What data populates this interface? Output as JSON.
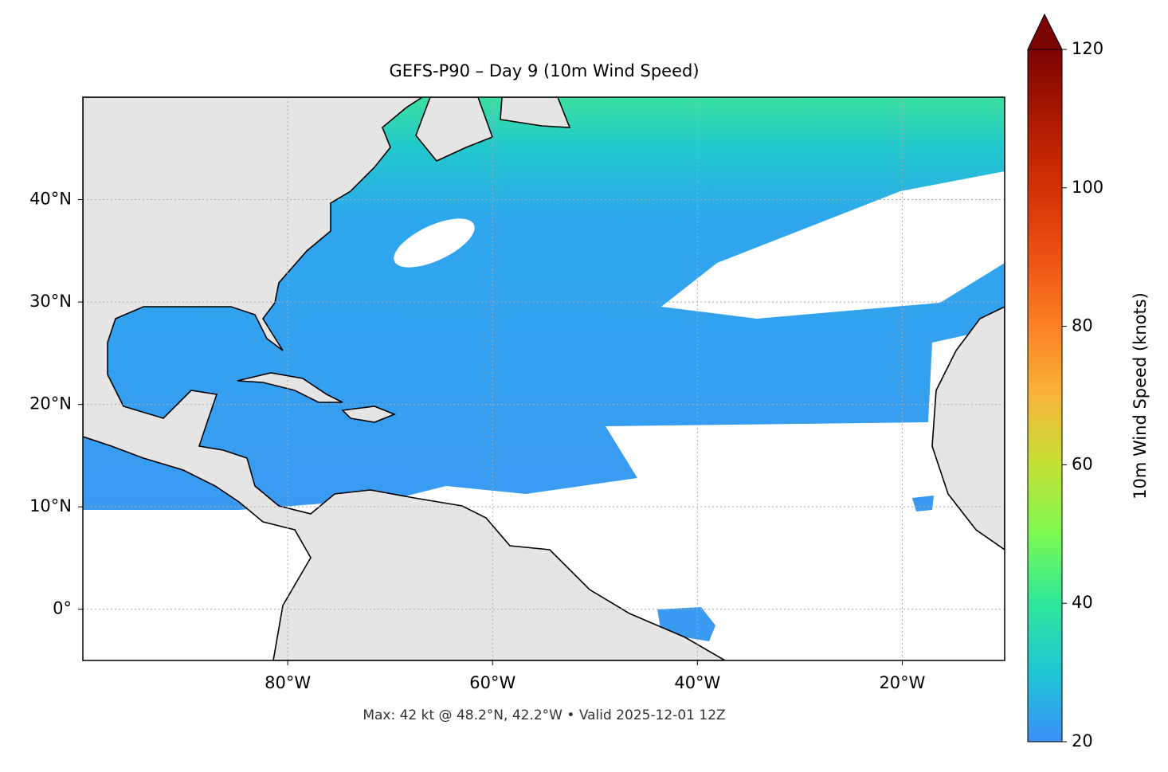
{
  "chart_data": {
    "type": "map",
    "title": "GEFS-P90 – Day 9 (10m Wind Speed)",
    "footer": "Max: 42 kt @ 48.2°N, 42.2°W • Valid 2025-12-01 12Z",
    "xlim": [
      -100,
      -10
    ],
    "ylim": [
      -5,
      50
    ],
    "xticks": [
      {
        "value": -80,
        "label": "80°W"
      },
      {
        "value": -60,
        "label": "60°W"
      },
      {
        "value": -40,
        "label": "40°W"
      },
      {
        "value": -20,
        "label": "20°W"
      }
    ],
    "yticks": [
      {
        "value": 0,
        "label": "0°"
      },
      {
        "value": 10,
        "label": "10°N"
      },
      {
        "value": 20,
        "label": "20°N"
      },
      {
        "value": 30,
        "label": "30°N"
      },
      {
        "value": 40,
        "label": "40°N"
      }
    ],
    "grid": true,
    "colorbar": {
      "label": "10m Wind Speed (knots)",
      "lim": [
        20,
        120
      ],
      "ticks": [
        20,
        40,
        60,
        80,
        100,
        120
      ]
    }
  }
}
